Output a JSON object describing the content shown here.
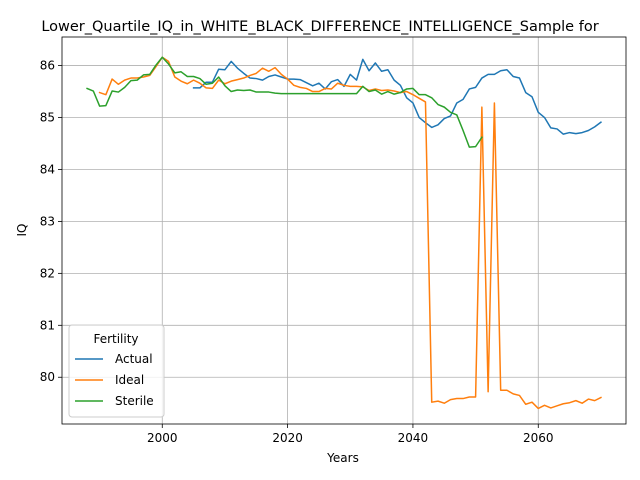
{
  "chart_data": {
    "type": "line",
    "title": "Lower_Quartile_IQ_in_WHITE_BLACK_DIFFERENCE_INTELLIGENCE_Sample for",
    "xlabel": "Years",
    "ylabel": "IQ",
    "xlim": [
      1984,
      2074
    ],
    "ylim": [
      79.1,
      86.55
    ],
    "xticks": [
      2000,
      2020,
      2040,
      2060
    ],
    "yticks": [
      80,
      81,
      82,
      83,
      84,
      85,
      86
    ],
    "grid": true,
    "legend": {
      "title": "Fertility",
      "placement": "lower-left"
    },
    "series": [
      {
        "name": "Actual",
        "color": "#1f77b4",
        "x": [
          2005,
          2006,
          2007,
          2008,
          2009,
          2010,
          2011,
          2012,
          2013,
          2014,
          2015,
          2016,
          2017,
          2018,
          2019,
          2020,
          2021,
          2022,
          2023,
          2024,
          2025,
          2026,
          2027,
          2028,
          2029,
          2030,
          2031,
          2032,
          2033,
          2034,
          2035,
          2036,
          2037,
          2038,
          2039,
          2040,
          2041,
          2042,
          2043,
          2044,
          2045,
          2046,
          2047,
          2048,
          2049,
          2050,
          2051,
          2052,
          2053,
          2054,
          2055,
          2056,
          2057,
          2058,
          2059,
          2060,
          2061,
          2062,
          2063,
          2064,
          2065,
          2066,
          2067,
          2068,
          2069,
          2070
        ],
        "y": [
          85.57,
          85.57,
          85.68,
          85.68,
          85.93,
          85.92,
          86.08,
          85.95,
          85.85,
          85.76,
          85.75,
          85.72,
          85.79,
          85.82,
          85.78,
          85.74,
          85.74,
          85.73,
          85.67,
          85.61,
          85.66,
          85.55,
          85.69,
          85.73,
          85.6,
          85.83,
          85.72,
          86.12,
          85.9,
          86.05,
          85.89,
          85.92,
          85.72,
          85.62,
          85.38,
          85.28,
          85.0,
          84.9,
          84.81,
          84.86,
          84.98,
          85.03,
          85.28,
          85.35,
          85.55,
          85.58,
          85.76,
          85.83,
          85.83,
          85.9,
          85.92,
          85.79,
          85.76,
          85.48,
          85.4,
          85.1,
          85.0,
          84.8,
          84.78,
          84.68,
          84.71,
          84.69,
          84.71,
          84.75,
          84.82,
          84.91
        ]
      },
      {
        "name": "Ideal",
        "color": "#ff7f0e",
        "x": [
          1990,
          1991,
          1992,
          1993,
          1994,
          1995,
          1996,
          1997,
          1998,
          1999,
          2000,
          2001,
          2002,
          2003,
          2004,
          2005,
          2006,
          2007,
          2008,
          2009,
          2010,
          2011,
          2012,
          2013,
          2014,
          2015,
          2016,
          2017,
          2018,
          2019,
          2020,
          2021,
          2022,
          2023,
          2024,
          2025,
          2026,
          2027,
          2028,
          2029,
          2030,
          2031,
          2032,
          2033,
          2034,
          2035,
          2036,
          2037,
          2038,
          2039,
          2040,
          2041,
          2042,
          2043,
          2044,
          2045,
          2046,
          2047,
          2048,
          2049,
          2050,
          2051,
          2052,
          2053,
          2054,
          2055,
          2056,
          2057,
          2058,
          2059,
          2060,
          2061,
          2062,
          2063,
          2064,
          2065,
          2066,
          2067,
          2068,
          2069,
          2070
        ],
        "y": [
          85.48,
          85.44,
          85.74,
          85.64,
          85.72,
          85.76,
          85.76,
          85.78,
          85.81,
          85.98,
          86.16,
          86.08,
          85.78,
          85.7,
          85.65,
          85.72,
          85.66,
          85.57,
          85.56,
          85.72,
          85.65,
          85.7,
          85.73,
          85.76,
          85.81,
          85.85,
          85.95,
          85.89,
          85.96,
          85.83,
          85.74,
          85.62,
          85.58,
          85.56,
          85.5,
          85.5,
          85.56,
          85.55,
          85.66,
          85.62,
          85.6,
          85.6,
          85.59,
          85.52,
          85.55,
          85.52,
          85.53,
          85.51,
          85.48,
          85.5,
          85.44,
          85.37,
          85.3,
          79.52,
          79.54,
          79.5,
          79.57,
          79.59,
          79.59,
          79.62,
          79.62,
          85.2,
          79.72,
          85.28,
          79.75,
          79.75,
          79.68,
          79.65,
          79.48,
          79.52,
          79.4,
          79.46,
          79.41,
          79.45,
          79.49,
          79.51,
          79.55,
          79.5,
          79.58,
          79.55,
          79.61
        ]
      },
      {
        "name": "Sterile",
        "color": "#2ca02c",
        "x": [
          1988,
          1989,
          1990,
          1991,
          1992,
          1993,
          1994,
          1995,
          1996,
          1997,
          1998,
          1999,
          2000,
          2001,
          2002,
          2003,
          2004,
          2005,
          2006,
          2007,
          2008,
          2009,
          2010,
          2011,
          2012,
          2013,
          2014,
          2015,
          2016,
          2017,
          2018,
          2019,
          2020,
          2021,
          2022,
          2023,
          2024,
          2025,
          2026,
          2027,
          2028,
          2029,
          2030,
          2031,
          2032,
          2033,
          2034,
          2035,
          2036,
          2037,
          2038,
          2039,
          2040,
          2041,
          2042,
          2043,
          2044,
          2045,
          2046,
          2047,
          2048,
          2049,
          2050,
          2051
        ],
        "y": [
          85.56,
          85.51,
          85.22,
          85.23,
          85.51,
          85.49,
          85.58,
          85.71,
          85.72,
          85.82,
          85.83,
          86.01,
          86.16,
          86.03,
          85.86,
          85.88,
          85.79,
          85.79,
          85.75,
          85.64,
          85.66,
          85.78,
          85.61,
          85.5,
          85.53,
          85.52,
          85.53,
          85.49,
          85.49,
          85.49,
          85.47,
          85.46,
          85.46,
          85.46,
          85.46,
          85.46,
          85.46,
          85.46,
          85.46,
          85.46,
          85.46,
          85.46,
          85.46,
          85.46,
          85.6,
          85.5,
          85.53,
          85.45,
          85.5,
          85.45,
          85.48,
          85.55,
          85.56,
          85.44,
          85.44,
          85.38,
          85.25,
          85.2,
          85.1,
          85.05,
          84.75,
          84.43,
          84.44,
          84.62
        ]
      }
    ]
  }
}
